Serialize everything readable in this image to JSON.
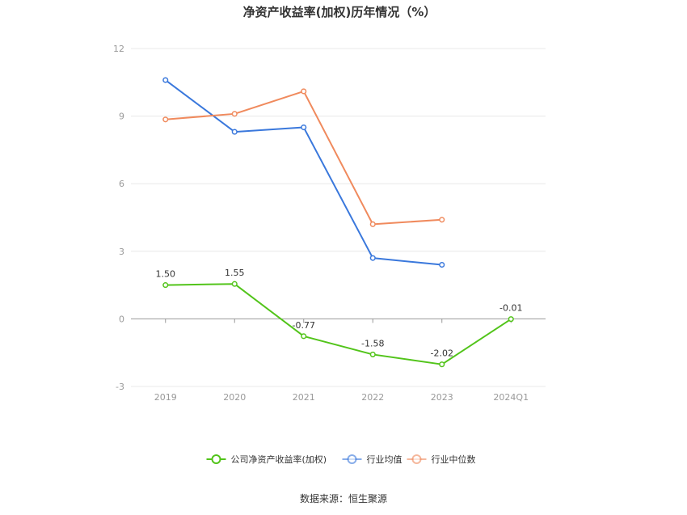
{
  "chart_data": {
    "type": "line",
    "title": "净资产收益率(加权)历年情况（%）",
    "categories": [
      "2019",
      "2020",
      "2021",
      "2022",
      "2023",
      "2024Q1"
    ],
    "ylim": [
      -3,
      12
    ],
    "yticks": [
      -3,
      0,
      3,
      6,
      9,
      12
    ],
    "grid": true,
    "legend_position": "bottom",
    "series": [
      {
        "name": "公司净资产收益率(加权)",
        "color": "#52c41a",
        "values": [
          1.5,
          1.55,
          -0.77,
          -1.58,
          -2.02,
          -0.01
        ],
        "labels": [
          "1.50",
          "1.55",
          "-0.77",
          "-1.58",
          "-2.02",
          "-0.01"
        ]
      },
      {
        "name": "行业均值",
        "color": "#3a78dc",
        "values": [
          10.6,
          8.3,
          8.5,
          2.7,
          2.4,
          null
        ]
      },
      {
        "name": "行业中位数",
        "color": "#f08a5d",
        "values": [
          8.85,
          9.1,
          10.1,
          4.2,
          4.4,
          null
        ]
      }
    ],
    "source": "数据来源：恒生聚源"
  }
}
